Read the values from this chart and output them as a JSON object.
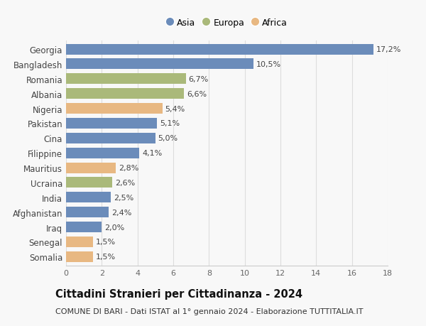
{
  "countries": [
    "Somalia",
    "Senegal",
    "Iraq",
    "Afghanistan",
    "India",
    "Ucraina",
    "Mauritius",
    "Filippine",
    "Cina",
    "Pakistan",
    "Nigeria",
    "Albania",
    "Romania",
    "Bangladesh",
    "Georgia"
  ],
  "values": [
    1.5,
    1.5,
    2.0,
    2.4,
    2.5,
    2.6,
    2.8,
    4.1,
    5.0,
    5.1,
    5.4,
    6.6,
    6.7,
    10.5,
    17.2
  ],
  "labels": [
    "1,5%",
    "1,5%",
    "2,0%",
    "2,4%",
    "2,5%",
    "2,6%",
    "2,8%",
    "4,1%",
    "5,0%",
    "5,1%",
    "5,4%",
    "6,6%",
    "6,7%",
    "10,5%",
    "17,2%"
  ],
  "continents": [
    "Africa",
    "Africa",
    "Asia",
    "Asia",
    "Asia",
    "Europa",
    "Africa",
    "Asia",
    "Asia",
    "Asia",
    "Africa",
    "Europa",
    "Europa",
    "Asia",
    "Asia"
  ],
  "continent_colors": {
    "Asia": "#6b8cba",
    "Europa": "#aab97a",
    "Africa": "#e8b882"
  },
  "legend_order": [
    "Asia",
    "Europa",
    "Africa"
  ],
  "title": "Cittadini Stranieri per Cittadinanza - 2024",
  "subtitle": "COMUNE DI BARI - Dati ISTAT al 1° gennaio 2024 - Elaborazione TUTTITALIA.IT",
  "xlim": [
    0,
    18
  ],
  "xticks": [
    0,
    2,
    4,
    6,
    8,
    10,
    12,
    14,
    16,
    18
  ],
  "background_color": "#f8f8f8",
  "bar_height": 0.72,
  "label_fontsize": 8.0,
  "title_fontsize": 10.5,
  "subtitle_fontsize": 8.0,
  "ytick_fontsize": 8.5,
  "xtick_fontsize": 8.0
}
